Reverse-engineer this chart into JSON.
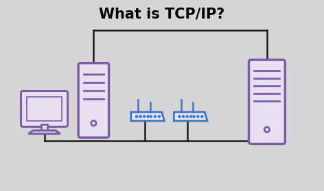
{
  "title": "What is TCP/IP?",
  "title_fontsize": 15,
  "title_fontweight": "bold",
  "bg_color": "#d6d6d6",
  "purple": "#7B5EA7",
  "purple_fill": "#e8e0f0",
  "blue": "#4472C4",
  "blue_fill": "#dce8f5",
  "line_color": "#1a1a1a",
  "line_width": 1.8,
  "figw": 4.72,
  "figh": 2.78,
  "dpi": 100
}
